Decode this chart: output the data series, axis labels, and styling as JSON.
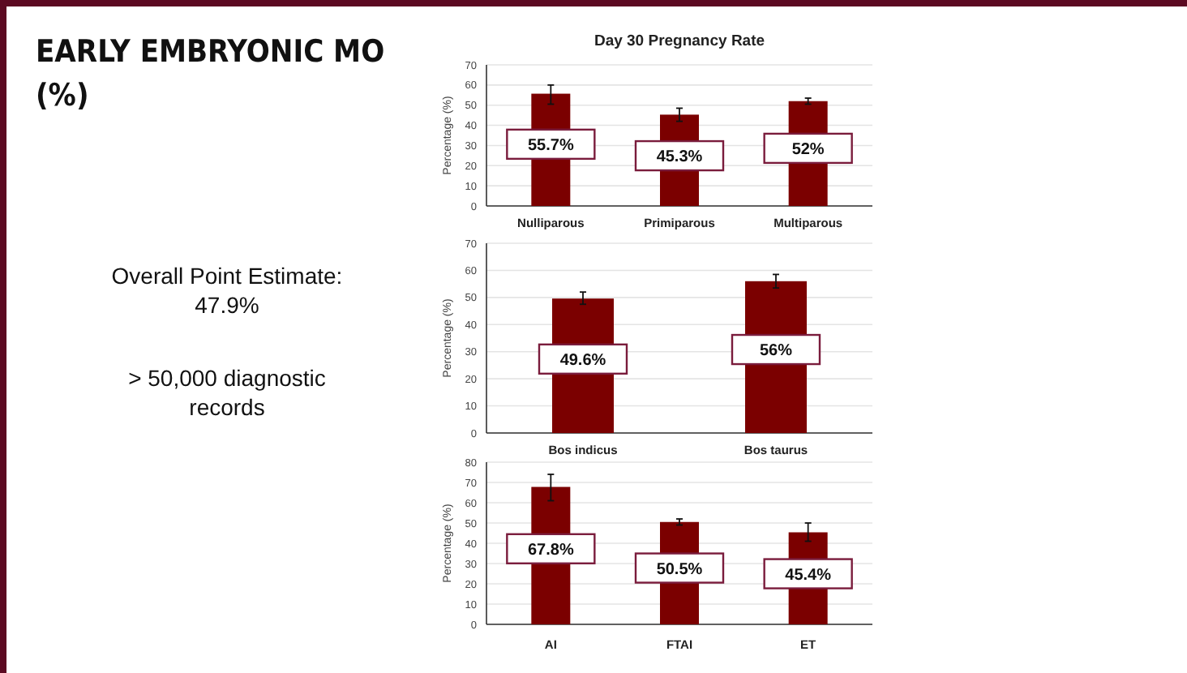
{
  "chart_data": [
    {
      "type": "other",
      "title": "EARLY EMBRYONIC MO (%)",
      "annotations": [
        "Overall Point Estimate: 47.9%",
        "> 50,000 diagnostic records"
      ]
    },
    {
      "type": "bar",
      "title": "Day 30 Pregnancy Rate",
      "ylabel": "Percentage (%)",
      "categories": [
        "Nulliparous",
        "Primiparous",
        "Multiparous"
      ],
      "values": [
        55.7,
        45.3,
        52
      ],
      "errors": [
        [
          50.5,
          60
        ],
        [
          42,
          48.5
        ],
        [
          50.5,
          53.5
        ]
      ],
      "value_labels": [
        "55.7%",
        "45.3%",
        "52%"
      ],
      "color": "#7b0000",
      "ylim": [
        0,
        70
      ],
      "yticks": [
        0,
        10,
        20,
        30,
        40,
        50,
        60,
        70
      ],
      "grid": "y"
    },
    {
      "type": "bar",
      "ylabel": "Percentage (%)",
      "categories": [
        "Bos indicus",
        "Bos taurus"
      ],
      "values": [
        49.6,
        56
      ],
      "errors": [
        [
          47.5,
          52
        ],
        [
          53.5,
          58.5
        ]
      ],
      "value_labels": [
        "49.6%",
        "56%"
      ],
      "color": "#7b0000",
      "ylim": [
        0,
        70
      ],
      "yticks": [
        0,
        10,
        20,
        30,
        40,
        50,
        60,
        70
      ],
      "grid": "y"
    },
    {
      "type": "bar",
      "ylabel": "Percentage (%)",
      "categories": [
        "AI",
        "FTAI",
        "ET"
      ],
      "values": [
        67.8,
        50.5,
        45.4
      ],
      "errors": [
        [
          61,
          74
        ],
        [
          49,
          52
        ],
        [
          41,
          50
        ]
      ],
      "value_labels": [
        "67.8%",
        "50.5%",
        "45.4%"
      ],
      "color": "#7b0000",
      "ylim": [
        0,
        80
      ],
      "yticks": [
        0,
        10,
        20,
        30,
        40,
        50,
        60,
        70,
        80
      ],
      "grid": "y"
    }
  ]
}
